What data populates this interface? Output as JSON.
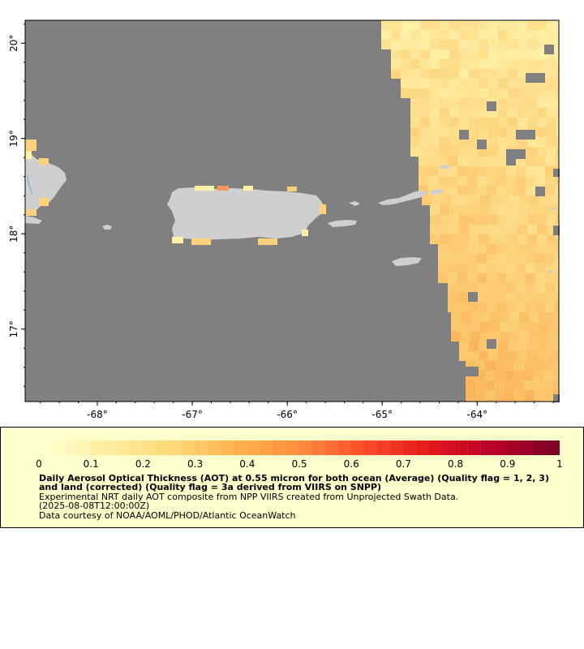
{
  "map": {
    "lon_range": [
      -68.76,
      -63.14
    ],
    "lat_range": [
      16.24,
      20.24
    ],
    "x_ticks": [
      {
        "value": -68,
        "label": "-68°"
      },
      {
        "value": -67,
        "label": "-67°"
      },
      {
        "value": -66,
        "label": "-66°"
      },
      {
        "value": -65,
        "label": "-65°"
      },
      {
        "value": -64,
        "label": "-64°"
      }
    ],
    "y_ticks": [
      {
        "value": 20,
        "label": "20°"
      },
      {
        "value": 19,
        "label": "19°"
      },
      {
        "value": 18,
        "label": "18°"
      },
      {
        "value": 17,
        "label": "17°"
      }
    ],
    "colors": {
      "no_data": "#808080",
      "land": "#cfcfcf",
      "water_lines": "#6fa8dc",
      "aot_low": "#fff2a8",
      "aot_mid": "#fdd27a",
      "aot_high": "#fbb45a"
    },
    "islands": [
      "Hispaniola",
      "Puerto Rico",
      "Vieques",
      "Culebra",
      "Virgin Islands",
      "St. Croix",
      "Mona"
    ]
  },
  "legend": {
    "colorbar": {
      "min": 0,
      "max": 1,
      "tick_values": [
        0,
        0.1,
        0.2,
        0.3,
        0.4,
        0.5,
        0.6,
        0.7,
        0.8,
        0.9,
        1
      ],
      "tick_labels": [
        "0",
        "0.1",
        "0.2",
        "0.3",
        "0.4",
        "0.5",
        "0.6",
        "0.7",
        "0.8",
        "0.9",
        "1"
      ],
      "stops": [
        "#ffffcc",
        "#ffeda0",
        "#fed976",
        "#feb24c",
        "#fd8d3c",
        "#fc4e2a",
        "#e31a1c",
        "#bd0026",
        "#800026"
      ]
    },
    "title": "Daily Aerosol Optical Thickness (AOT) at 0.55 micron for both ocean (Average) (Quality flag = 1, 2, 3) and land (corrected) (Quality flag = 3a derived from VIIRS on SNPP)",
    "description": "Experimental NRT daily AOT composite from NPP VIIRS created from Unprojected Swath Data.",
    "timestamp": "(2025-08-08T12:00:00Z)",
    "credit": "Data courtesy of NOAA/AOML/PHOD/Atlantic OceanWatch"
  }
}
